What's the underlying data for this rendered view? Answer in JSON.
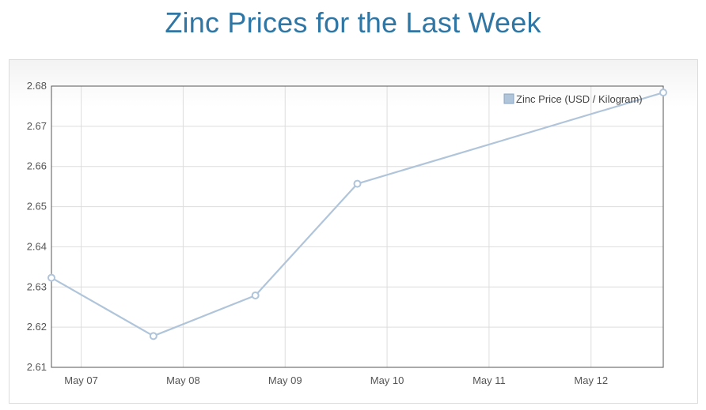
{
  "title": "Zinc Prices for the Last Week",
  "colors": {
    "title": "#2f76a5",
    "series": "#b0c4da",
    "grid": "#dddddd",
    "axis": "#555555"
  },
  "chart_data": {
    "type": "line",
    "title": "Zinc Prices for the Last Week",
    "xlabel": "",
    "ylabel": "",
    "x_tick_labels": [
      "May 07",
      "May 08",
      "May 09",
      "May 10",
      "May 11",
      "May 12"
    ],
    "y_tick_labels": [
      "2.61",
      "2.62",
      "2.63",
      "2.64",
      "2.65",
      "2.66",
      "2.67",
      "2.68"
    ],
    "ylim": [
      2.61,
      2.68
    ],
    "xlim": [
      "2021-05-06T17:00",
      "2021-05-12T17:00"
    ],
    "grid": true,
    "legend_position": "top-right",
    "series": [
      {
        "name": "Zinc Price (USD / Kilogram)",
        "x": [
          "2021-05-06T17:00",
          "2021-05-07T17:00",
          "2021-05-08T17:00",
          "2021-05-09T17:00",
          "2021-05-12T17:00"
        ],
        "values": [
          2.6323,
          2.6178,
          2.6279,
          2.6557,
          2.6784
        ]
      }
    ]
  }
}
